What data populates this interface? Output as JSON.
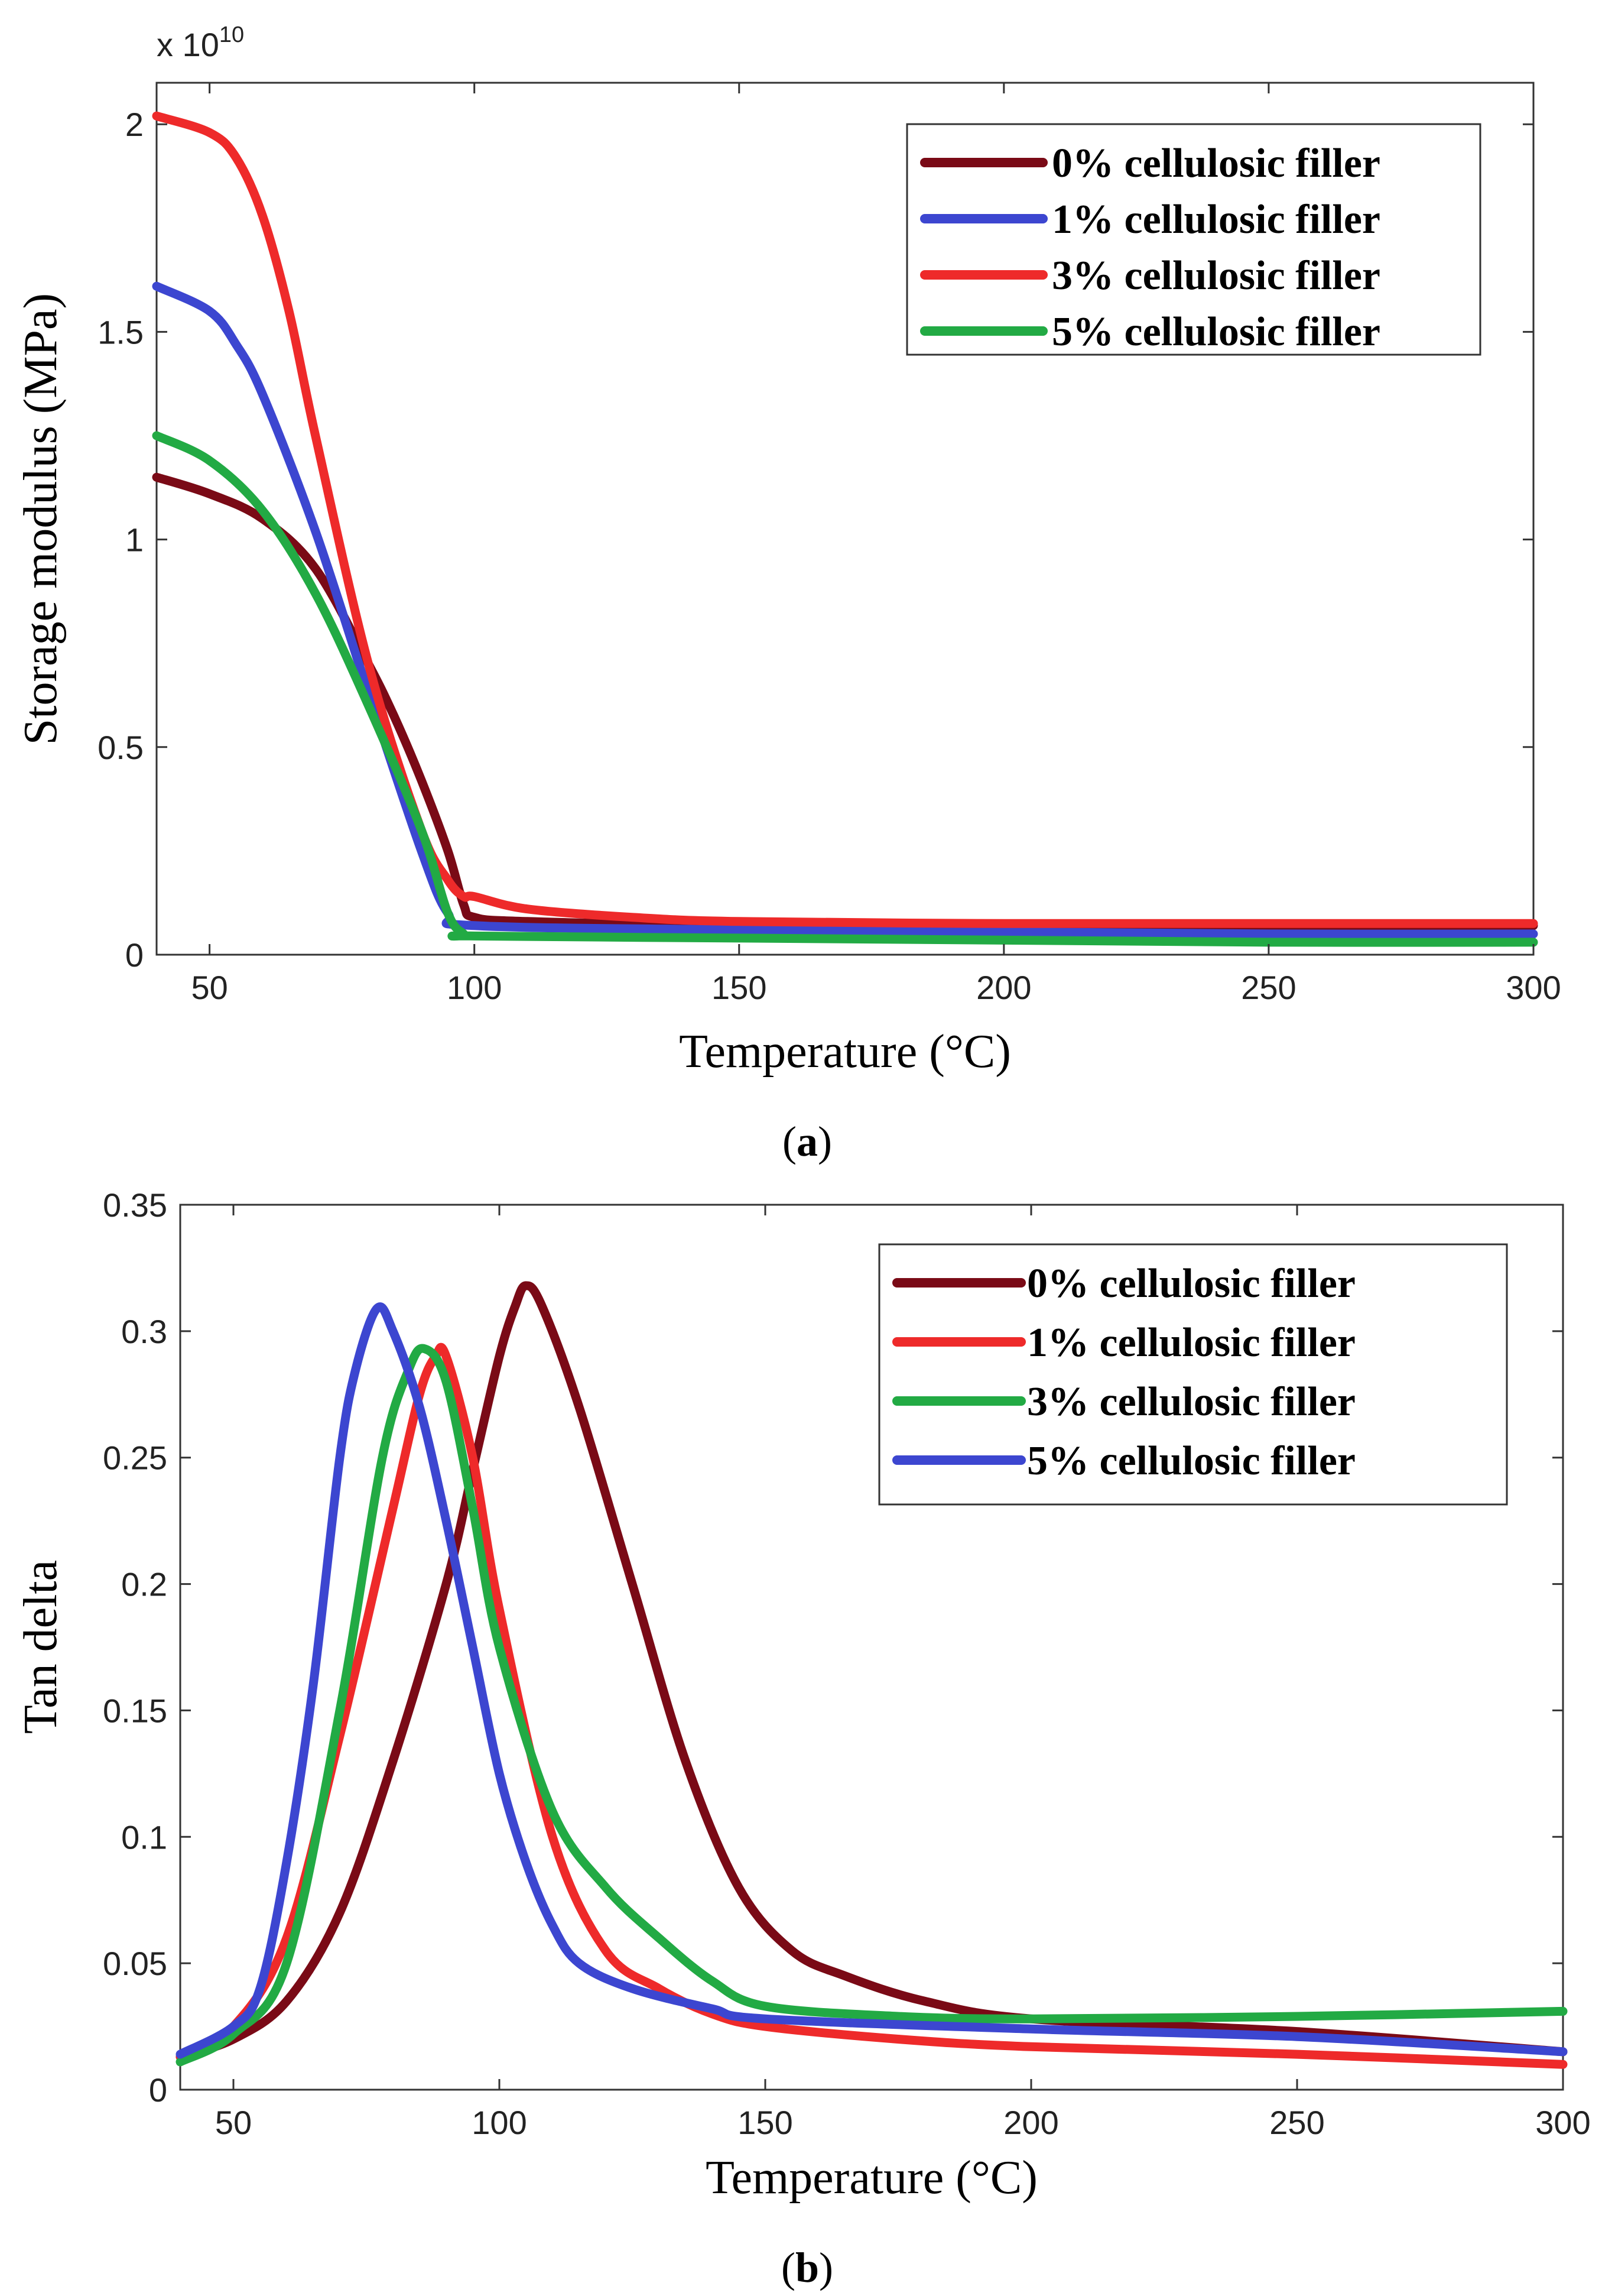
{
  "chart_data": [
    {
      "type": "line",
      "panel": "a",
      "caption_label": "a",
      "xlabel": "Temperature (°C)",
      "ylabel": "Storage modulus (MPa)",
      "y_multiplier": "x 10",
      "y_exponent": "10",
      "xlim": [
        40,
        300
      ],
      "ylim": [
        0,
        2.1
      ],
      "xticks": [
        50,
        100,
        150,
        200,
        250,
        300
      ],
      "yticks": [
        0,
        0.5,
        1,
        1.5,
        2
      ],
      "grid": false,
      "legend_position": "top-right",
      "series": [
        {
          "name": "0% cellulosic filler",
          "color": "#7a0a16",
          "x": [
            40,
            50,
            60,
            70,
            80,
            85,
            90,
            95,
            98,
            100,
            110,
            150,
            200,
            250,
            300
          ],
          "y": [
            1.15,
            1.11,
            1.05,
            0.93,
            0.7,
            0.57,
            0.42,
            0.25,
            0.12,
            0.09,
            0.08,
            0.07,
            0.07,
            0.07,
            0.07
          ]
        },
        {
          "name": "1% cellulosic filler",
          "color": "#3c46d0",
          "x": [
            40,
            50,
            55,
            60,
            70,
            80,
            90,
            95,
            100,
            150,
            200,
            250,
            300
          ],
          "y": [
            1.61,
            1.55,
            1.47,
            1.35,
            1.02,
            0.63,
            0.25,
            0.1,
            0.07,
            0.06,
            0.055,
            0.05,
            0.05
          ]
        },
        {
          "name": "3% cellulosic filler",
          "color": "#ee2a2a",
          "x": [
            40,
            50,
            55,
            60,
            65,
            70,
            80,
            90,
            95,
            98,
            100,
            110,
            130,
            150,
            200,
            250,
            300
          ],
          "y": [
            2.02,
            1.98,
            1.92,
            1.78,
            1.55,
            1.25,
            0.7,
            0.3,
            0.18,
            0.14,
            0.14,
            0.11,
            0.09,
            0.08,
            0.075,
            0.075,
            0.075
          ]
        },
        {
          "name": "5% cellulosic filler",
          "color": "#22aa44",
          "x": [
            40,
            50,
            60,
            70,
            80,
            90,
            95,
            98,
            100,
            150,
            200,
            250,
            300
          ],
          "y": [
            1.25,
            1.19,
            1.07,
            0.87,
            0.6,
            0.3,
            0.1,
            0.05,
            0.045,
            0.04,
            0.035,
            0.03,
            0.03
          ]
        }
      ]
    },
    {
      "type": "line",
      "panel": "b",
      "caption_label": "b",
      "xlabel": "Temperature (°C)",
      "ylabel": "Tan delta",
      "xlim": [
        40,
        300
      ],
      "ylim": [
        0,
        0.35
      ],
      "xticks": [
        50,
        100,
        150,
        200,
        250,
        300
      ],
      "yticks": [
        0,
        0.05,
        0.1,
        0.15,
        0.2,
        0.25,
        0.3,
        0.35
      ],
      "grid": false,
      "legend_position": "top-right",
      "series": [
        {
          "name": "0% cellulosic filler",
          "color": "#7a0a16",
          "x": [
            40,
            50,
            60,
            70,
            80,
            90,
            95,
            100,
            103,
            105,
            108,
            115,
            125,
            135,
            145,
            155,
            165,
            180,
            200,
            250,
            300
          ],
          "y": [
            0.013,
            0.02,
            0.035,
            0.07,
            0.13,
            0.2,
            0.245,
            0.29,
            0.31,
            0.318,
            0.31,
            0.27,
            0.2,
            0.13,
            0.08,
            0.055,
            0.045,
            0.035,
            0.028,
            0.023,
            0.015
          ]
        },
        {
          "name": "1% cellulosic filler",
          "color": "#ee2a2a",
          "x": [
            40,
            50,
            60,
            70,
            80,
            85,
            88,
            90,
            95,
            100,
            110,
            120,
            130,
            140,
            150,
            175,
            200,
            250,
            300
          ],
          "y": [
            0.013,
            0.025,
            0.06,
            0.14,
            0.23,
            0.275,
            0.29,
            0.29,
            0.25,
            0.19,
            0.1,
            0.055,
            0.04,
            0.03,
            0.025,
            0.02,
            0.017,
            0.014,
            0.01
          ]
        },
        {
          "name": "3% cellulosic filler",
          "color": "#22aa44",
          "x": [
            40,
            50,
            60,
            70,
            78,
            83,
            86,
            90,
            95,
            100,
            110,
            120,
            130,
            140,
            150,
            175,
            200,
            250,
            300
          ],
          "y": [
            0.011,
            0.022,
            0.05,
            0.15,
            0.25,
            0.285,
            0.293,
            0.28,
            0.23,
            0.175,
            0.11,
            0.08,
            0.06,
            0.043,
            0.033,
            0.029,
            0.028,
            0.029,
            0.031
          ]
        },
        {
          "name": "5% cellulosic filler",
          "color": "#3c46d0",
          "x": [
            40,
            50,
            55,
            60,
            65,
            70,
            73,
            77,
            80,
            85,
            90,
            95,
            100,
            105,
            110,
            115,
            125,
            140,
            150,
            200,
            250,
            300
          ],
          "y": [
            0.014,
            0.025,
            0.04,
            0.09,
            0.16,
            0.25,
            0.285,
            0.309,
            0.3,
            0.27,
            0.225,
            0.175,
            0.125,
            0.09,
            0.065,
            0.05,
            0.04,
            0.032,
            0.028,
            0.024,
            0.021,
            0.015
          ]
        }
      ]
    }
  ]
}
